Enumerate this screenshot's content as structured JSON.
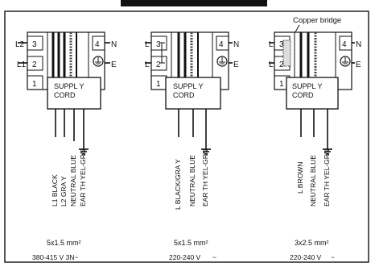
{
  "diagram": {
    "panels": [
      {
        "terminals": [
          "1",
          "2",
          "3",
          "4"
        ],
        "left_labels": [
          "L2",
          "L1"
        ],
        "right_labels": [
          "N",
          "E"
        ],
        "box_label_1": "SUPPL Y",
        "box_label_2": "CORD",
        "wire_labels": [
          "L1 BLACK",
          "L2 GRA Y",
          "NEUTRAL BLUE",
          "EAR TH YEL-GRN"
        ],
        "spec": "5x1.5 mm²",
        "voltage": "380-415 V 3N~"
      },
      {
        "terminals": [
          "1",
          "2",
          "3",
          "4"
        ],
        "left_labels": [
          "L",
          "L"
        ],
        "right_labels": [
          "N",
          "E"
        ],
        "box_label_1": "SUPPL Y",
        "box_label_2": "CORD",
        "wire_labels": [
          "L BLACK/GRA Y",
          "NEUTRAL BLUE",
          "EAR TH YEL-GRN"
        ],
        "spec": "5x1.5 mm²",
        "voltage": "220-240 V",
        "voltage_suffix": "~"
      },
      {
        "terminals": [
          "1",
          "2",
          "3",
          "4"
        ],
        "left_labels": [
          "L",
          "L"
        ],
        "right_labels": [
          "N",
          "E"
        ],
        "box_label_1": "SUPPL Y",
        "box_label_2": "CORD",
        "wire_labels": [
          "L BROWN",
          "NEUTRAL BLUE",
          "EAR TH YEL-GRN"
        ],
        "spec": "3x2.5 mm²",
        "voltage": "220-240 V",
        "voltage_suffix": "~",
        "callout": "Copper bridge"
      }
    ]
  }
}
